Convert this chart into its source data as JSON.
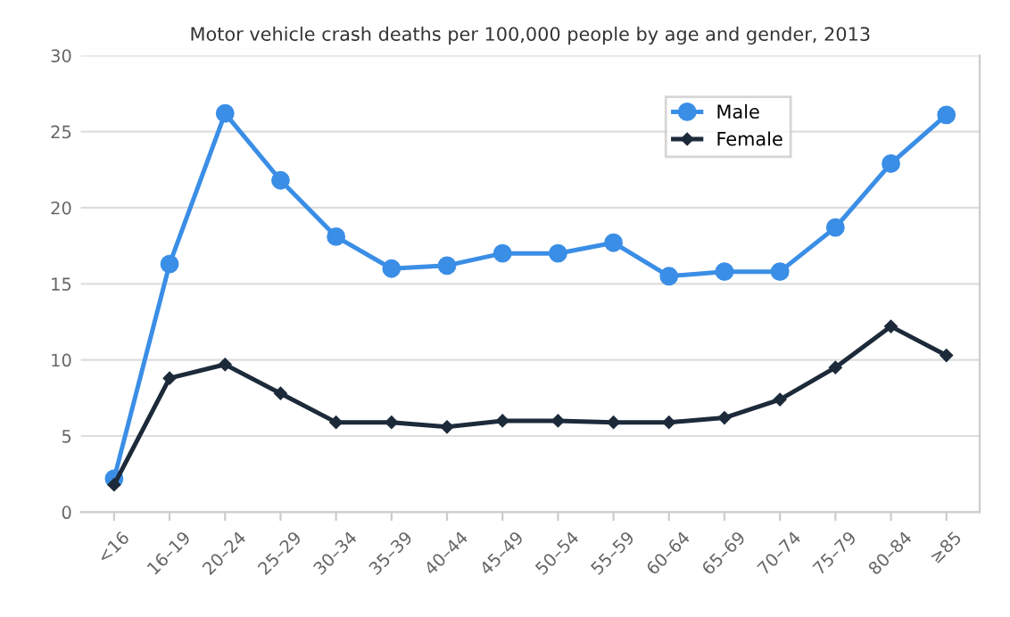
{
  "chart_data": {
    "type": "line",
    "title": "Motor vehicle crash deaths per 100,000 people by age and gender, 2013",
    "categories": [
      "<16",
      "16–19",
      "20–24",
      "25–29",
      "30–34",
      "35–39",
      "40–44",
      "45–49",
      "50–54",
      "55–59",
      "60–64",
      "65–69",
      "70–74",
      "75–79",
      "80–84",
      "≥85"
    ],
    "series": [
      {
        "name": "Male",
        "color": "#3a8ee6",
        "marker": "circle",
        "values": [
          2.2,
          16.3,
          26.2,
          21.8,
          18.1,
          16.0,
          16.2,
          17.0,
          17.0,
          17.7,
          15.5,
          15.8,
          15.8,
          18.7,
          22.9,
          26.1
        ]
      },
      {
        "name": "Female",
        "color": "#1c2a3a",
        "marker": "diamond",
        "values": [
          1.8,
          8.8,
          9.7,
          7.8,
          5.9,
          5.9,
          5.6,
          6.0,
          6.0,
          5.9,
          5.9,
          6.2,
          7.4,
          9.5,
          12.2,
          10.3
        ]
      }
    ],
    "ylim": [
      0,
      30
    ],
    "yticks": [
      0,
      5,
      10,
      15,
      20,
      25,
      30
    ],
    "grid": "y",
    "legend": "top right"
  }
}
